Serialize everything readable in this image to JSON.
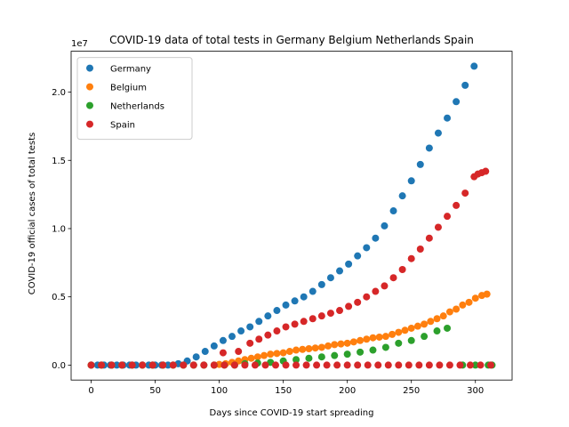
{
  "chart_data": {
    "type": "scatter",
    "title": "COVID-19 data of total tests in Germany Belgium Netherlands Spain",
    "x_label": "Days since COVID-19 start spreading",
    "y_label": "COVID-19 official cases of total tests",
    "y_offset_label": "1e7",
    "xlim": [
      -15.65,
      328.65
    ],
    "ylim": [
      -0.1095,
      2.2995
    ],
    "xticks": [
      0,
      50,
      100,
      150,
      200,
      250,
      300
    ],
    "yticks": [
      {
        "value": 0,
        "label": "0.0"
      },
      0.5,
      {
        "value": 1,
        "label": "1.0"
      },
      1.5,
      {
        "value": 2,
        "label": "2.0"
      }
    ],
    "legend": "upper left",
    "series": [
      {
        "name": "Germany",
        "color": "#1f77b4",
        "x": [
          0,
          5,
          10,
          15,
          20,
          25,
          30,
          35,
          40,
          45,
          50,
          55,
          60,
          68,
          75,
          82,
          89,
          96,
          103,
          110,
          117,
          124,
          131,
          138,
          145,
          152,
          159,
          166,
          173,
          180,
          187,
          194,
          201,
          208,
          215,
          222,
          229,
          236,
          243,
          250,
          257,
          264,
          271,
          278,
          285,
          292,
          299
        ],
        "values": [
          0,
          0,
          0,
          0,
          0,
          0,
          0,
          0,
          0,
          0,
          0,
          0,
          0,
          0.01,
          0.03,
          0.06,
          0.1,
          0.14,
          0.18,
          0.21,
          0.25,
          0.28,
          0.32,
          0.36,
          0.4,
          0.44,
          0.47,
          0.5,
          0.54,
          0.59,
          0.64,
          0.69,
          0.74,
          0.8,
          0.86,
          0.93,
          1.02,
          1.13,
          1.24,
          1.35,
          1.47,
          1.59,
          1.7,
          1.81,
          1.93,
          2.05,
          2.19
        ]
      },
      {
        "name": "Belgium",
        "color": "#ff7f0e",
        "x": [
          0,
          8,
          16,
          24,
          32,
          40,
          48,
          56,
          64,
          72,
          80,
          88,
          96,
          100,
          105,
          110,
          115,
          120,
          125,
          130,
          135,
          140,
          145,
          150,
          155,
          160,
          165,
          170,
          175,
          180,
          185,
          190,
          195,
          200,
          205,
          210,
          215,
          220,
          225,
          230,
          235,
          240,
          245,
          250,
          255,
          260,
          265,
          270,
          275,
          280,
          285,
          290,
          295,
          300,
          305,
          309
        ],
        "values": [
          0,
          0,
          0,
          0,
          0,
          0,
          0,
          0,
          0,
          0,
          0,
          0,
          0,
          0.005,
          0.01,
          0.02,
          0.03,
          0.04,
          0.05,
          0.06,
          0.07,
          0.08,
          0.085,
          0.09,
          0.1,
          0.11,
          0.115,
          0.12,
          0.125,
          0.13,
          0.14,
          0.15,
          0.155,
          0.16,
          0.17,
          0.18,
          0.19,
          0.2,
          0.205,
          0.21,
          0.225,
          0.24,
          0.255,
          0.27,
          0.285,
          0.3,
          0.32,
          0.34,
          0.36,
          0.39,
          0.41,
          0.44,
          0.46,
          0.49,
          0.51,
          0.52
        ]
      },
      {
        "name": "Netherlands",
        "color": "#2ca02c",
        "x": [
          0,
          8,
          16,
          24,
          32,
          40,
          48,
          56,
          64,
          72,
          80,
          88,
          96,
          104,
          112,
          120,
          130,
          140,
          150,
          160,
          170,
          180,
          190,
          200,
          210,
          220,
          230,
          240,
          250,
          260,
          270,
          278,
          290,
          300,
          310,
          313
        ],
        "values": [
          0,
          0,
          0,
          0,
          0,
          0,
          0,
          0,
          0,
          0,
          0,
          0,
          0,
          0,
          0,
          0.01,
          0.015,
          0.02,
          0.03,
          0.04,
          0.05,
          0.06,
          0.07,
          0.08,
          0.095,
          0.11,
          0.13,
          0.16,
          0.18,
          0.21,
          0.25,
          0.27,
          0,
          0,
          0,
          0
        ]
      },
      {
        "name": "Spain",
        "color": "#d62728",
        "x": [
          0,
          8,
          16,
          24,
          32,
          40,
          48,
          56,
          64,
          72,
          80,
          88,
          96,
          104,
          112,
          120,
          128,
          136,
          144,
          152,
          160,
          168,
          176,
          184,
          192,
          200,
          208,
          216,
          224,
          232,
          240,
          248,
          256,
          264,
          272,
          280,
          288,
          296,
          304,
          312,
          103,
          115,
          124,
          131,
          138,
          145,
          152,
          159,
          166,
          173,
          180,
          187,
          194,
          201,
          208,
          215,
          222,
          229,
          236,
          243,
          250,
          257,
          264,
          271,
          278,
          285,
          292,
          299,
          302,
          305,
          308
        ],
        "values": [
          0,
          0,
          0,
          0,
          0,
          0,
          0,
          0,
          0,
          0,
          0,
          0,
          0,
          0,
          0,
          0,
          0,
          0,
          0,
          0,
          0,
          0,
          0,
          0,
          0,
          0,
          0,
          0,
          0,
          0,
          0,
          0,
          0,
          0,
          0,
          0,
          0,
          0,
          0,
          0,
          0.09,
          0.1,
          0.16,
          0.19,
          0.22,
          0.25,
          0.28,
          0.3,
          0.32,
          0.34,
          0.36,
          0.38,
          0.4,
          0.43,
          0.46,
          0.5,
          0.54,
          0.58,
          0.64,
          0.7,
          0.78,
          0.85,
          0.93,
          1.01,
          1.09,
          1.17,
          1.26,
          1.38,
          1.4,
          1.41,
          1.42
        ]
      }
    ]
  }
}
